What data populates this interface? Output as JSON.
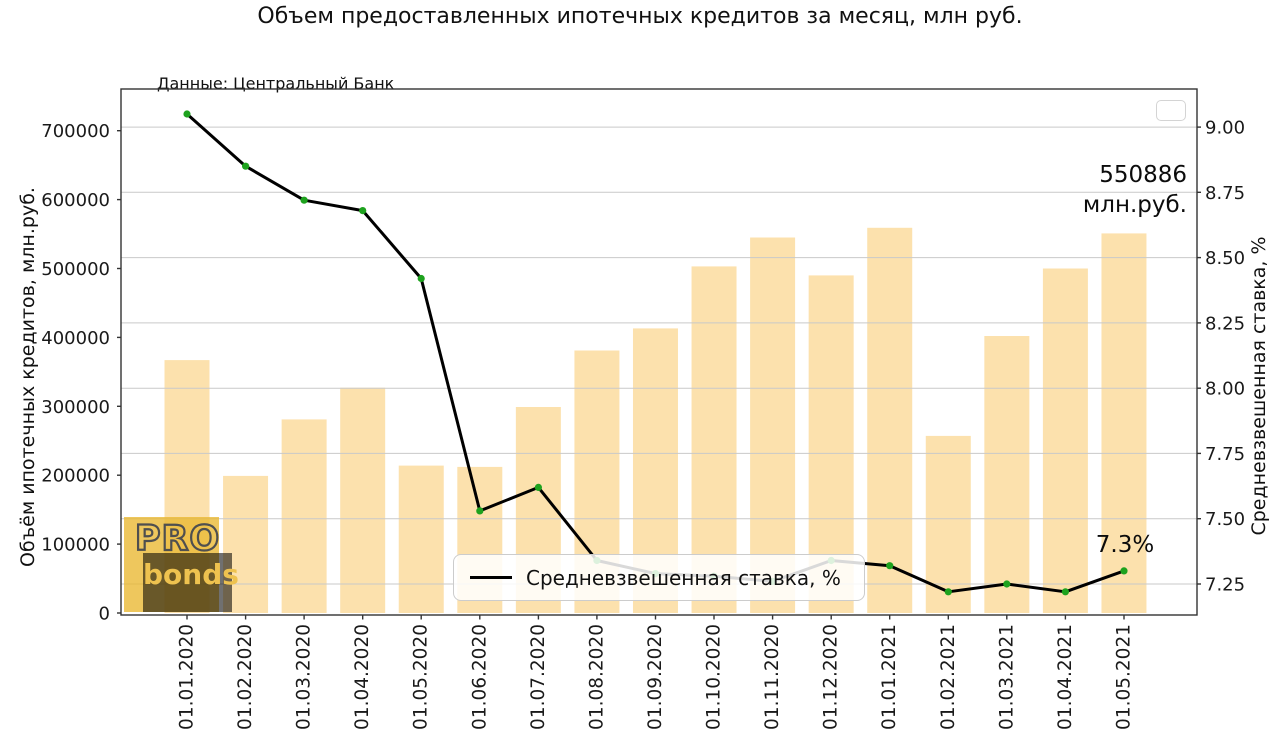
{
  "figure": {
    "title": "Объем предоставленных ипотечных кредитов за месяц, млн руб.",
    "source_note": "Данные: Центральный Банк"
  },
  "logo": {
    "line1": "PRO",
    "line2": "bonds"
  },
  "legend": {
    "rate_label": "Средневзвешенная ставка, %"
  },
  "annotations": {
    "volume_value": "550886",
    "volume_unit": "млн.руб.",
    "rate": "7.3%"
  },
  "chart_data": {
    "type": "bar+line",
    "title": "Объем предоставленных ипотечных кредитов за месяц, млн руб.",
    "categories": [
      "01.01.2020",
      "01.02.2020",
      "01.03.2020",
      "01.04.2020",
      "01.05.2020",
      "01.06.2020",
      "01.07.2020",
      "01.08.2020",
      "01.09.2020",
      "01.10.2020",
      "01.11.2020",
      "01.12.2020",
      "01.01.2021",
      "01.02.2021",
      "01.03.2021",
      "01.04.2021",
      "01.05.2021"
    ],
    "series": [
      {
        "name": "Объем ипотечных кредитов, млн.руб.",
        "type": "bar",
        "axis": "left",
        "color": "#fce1ad",
        "values": [
          367000,
          199000,
          281000,
          327000,
          214000,
          212000,
          299000,
          381000,
          413000,
          503000,
          545000,
          490000,
          559000,
          257000,
          402000,
          500000,
          550886
        ]
      },
      {
        "name": "Средневзвешенная ставка, %",
        "type": "line",
        "axis": "right",
        "color": "#000000",
        "marker_color": "#1ea21e",
        "values": [
          9.05,
          8.85,
          8.72,
          8.68,
          8.42,
          7.53,
          7.62,
          7.34,
          7.29,
          7.28,
          7.26,
          7.34,
          7.32,
          7.22,
          7.25,
          7.22,
          7.3
        ]
      }
    ],
    "left_axis": {
      "label": "Объём ипотечных кредитов, млн.руб.",
      "ticks": [
        0,
        100000,
        200000,
        300000,
        400000,
        500000,
        600000,
        700000
      ],
      "range": [
        0,
        760000
      ]
    },
    "right_axis": {
      "label": "Средневзвешенная ставка, %",
      "ticks": [
        "7.25",
        "7.50",
        "7.75",
        "8.00",
        "8.25",
        "8.50",
        "8.75",
        "9.00"
      ],
      "range": [
        7.13,
        9.15
      ]
    },
    "grid": "horizontal, aligned to right axis ticks",
    "legend_position": "lower center",
    "colors": {
      "grid": "#c9c9c9",
      "frame": "#333333",
      "text": "#1a1a1a"
    }
  }
}
